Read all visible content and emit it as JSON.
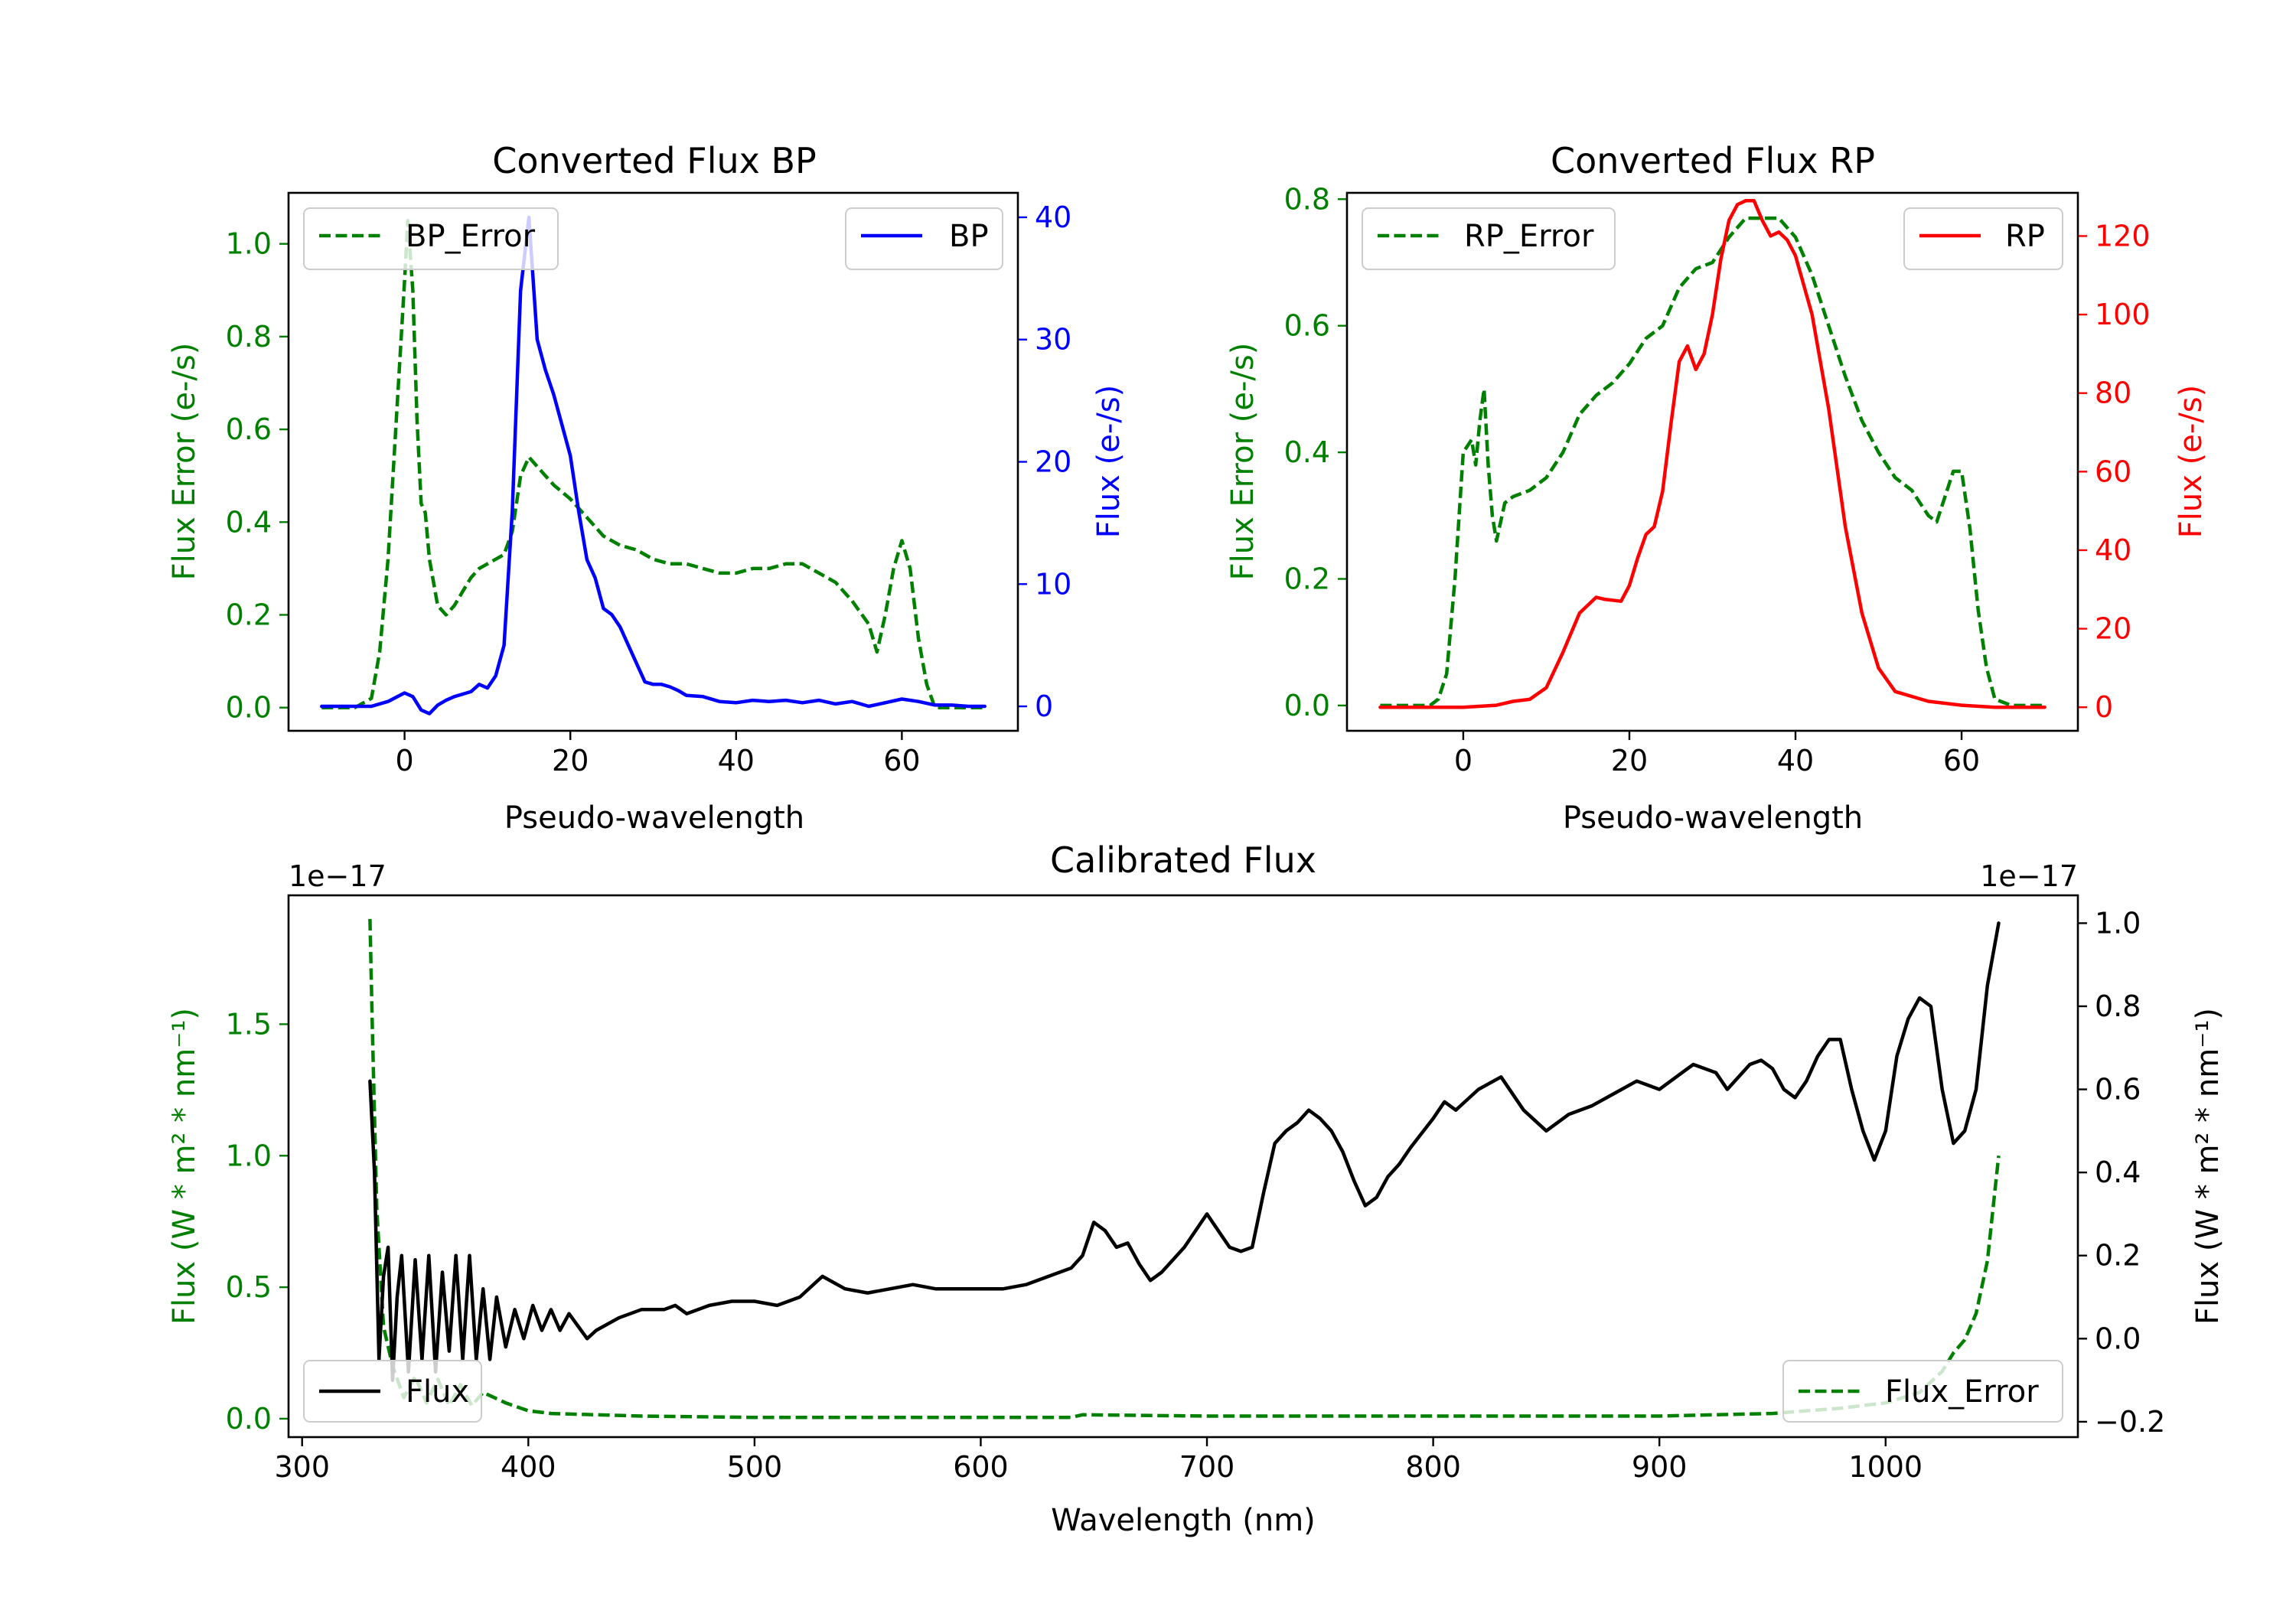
{
  "colors": {
    "green": "#008000",
    "blue": "#0000ff",
    "red": "#ff0000",
    "black": "#000000"
  },
  "chart_data": [
    {
      "id": "bp",
      "type": "line",
      "title": "Converted Flux BP",
      "xlabel": "Pseudo-wavelength",
      "ylabel_left": "Flux Error (e-/s)",
      "ylabel_right": "Flux (e-/s)",
      "xlim": [
        -14,
        74
      ],
      "ylim_left": [
        -0.05,
        1.11
      ],
      "ylim_right": [
        -2,
        42
      ],
      "xticks": [
        0,
        20,
        40,
        60
      ],
      "xtick_labels": [
        "0",
        "20",
        "40",
        "60"
      ],
      "yticks_left": [
        0.0,
        0.2,
        0.4,
        0.6,
        0.8,
        1.0
      ],
      "ytick_labels_left": [
        "0.0",
        "0.2",
        "0.4",
        "0.6",
        "0.8",
        "1.0"
      ],
      "yticks_right": [
        0,
        10,
        20,
        30,
        40
      ],
      "ytick_labels_right": [
        "0",
        "10",
        "20",
        "30",
        "40"
      ],
      "legend_left": {
        "label": "BP_Error",
        "placement": "top-left"
      },
      "legend_right": {
        "label": "BP",
        "placement": "top-right"
      },
      "series": [
        {
          "name": "BP_Error",
          "axis": "left",
          "color": "#008000",
          "style": "dashed",
          "x": [
            -10,
            -6,
            -4,
            -3,
            -2,
            -1,
            0,
            0.4,
            1,
            1.5,
            2,
            2.5,
            3,
            4,
            5,
            6,
            7,
            8,
            9,
            10,
            11,
            12,
            13,
            14,
            15,
            16,
            17,
            18,
            20,
            22,
            24,
            26,
            28,
            30,
            32,
            34,
            36,
            38,
            40,
            42,
            44,
            46,
            48,
            50,
            52,
            54,
            56,
            57,
            58,
            59,
            60,
            61,
            62,
            63,
            64,
            66,
            68,
            70
          ],
          "y": [
            0,
            0,
            0.02,
            0.12,
            0.32,
            0.62,
            0.92,
            1.05,
            0.9,
            0.62,
            0.44,
            0.42,
            0.32,
            0.22,
            0.2,
            0.22,
            0.25,
            0.28,
            0.3,
            0.31,
            0.32,
            0.33,
            0.38,
            0.5,
            0.54,
            0.52,
            0.5,
            0.48,
            0.45,
            0.41,
            0.37,
            0.35,
            0.34,
            0.32,
            0.31,
            0.31,
            0.3,
            0.29,
            0.29,
            0.3,
            0.3,
            0.31,
            0.31,
            0.29,
            0.27,
            0.23,
            0.18,
            0.12,
            0.2,
            0.3,
            0.36,
            0.3,
            0.15,
            0.05,
            0.0,
            0.0,
            0.0,
            0.0
          ]
        },
        {
          "name": "BP",
          "axis": "right",
          "color": "#0000ff",
          "style": "solid",
          "x": [
            -10,
            -4,
            -2,
            0,
            1,
            2,
            3,
            4,
            5,
            6,
            7,
            8,
            9,
            10,
            11,
            12,
            13,
            14,
            15,
            16,
            17,
            18,
            19,
            20,
            21,
            22,
            23,
            24,
            25,
            26,
            27,
            28,
            29,
            30,
            31,
            32,
            33,
            34,
            36,
            38,
            40,
            42,
            44,
            46,
            48,
            50,
            52,
            54,
            56,
            58,
            60,
            62,
            64,
            66,
            68,
            70
          ],
          "y": [
            0,
            0,
            0.4,
            1.1,
            0.8,
            -0.3,
            -0.6,
            0.1,
            0.5,
            0.8,
            1,
            1.2,
            1.8,
            1.5,
            2.5,
            5,
            16,
            34,
            40,
            30,
            27.5,
            25.5,
            23,
            20.5,
            16,
            12,
            10.5,
            8,
            7.5,
            6.5,
            5,
            3.5,
            2,
            1.8,
            1.8,
            1.6,
            1.3,
            0.9,
            0.8,
            0.4,
            0.3,
            0.5,
            0.4,
            0.5,
            0.3,
            0.5,
            0.2,
            0.4,
            0.0,
            0.3,
            0.6,
            0.4,
            0.1,
            0.1,
            0.0,
            0.0
          ]
        }
      ]
    },
    {
      "id": "rp",
      "type": "line",
      "title": "Converted Flux RP",
      "xlabel": "Pseudo-wavelength",
      "ylabel_left": "Flux Error (e-/s)",
      "ylabel_right": "Flux (e-/s)",
      "xlim": [
        -14,
        74
      ],
      "ylim_left": [
        -0.04,
        0.81
      ],
      "ylim_right": [
        -6,
        131
      ],
      "xticks": [
        0,
        20,
        40,
        60
      ],
      "xtick_labels": [
        "0",
        "20",
        "40",
        "60"
      ],
      "yticks_left": [
        0.0,
        0.2,
        0.4,
        0.6,
        0.8
      ],
      "ytick_labels_left": [
        "0.0",
        "0.2",
        "0.4",
        "0.6",
        "0.8"
      ],
      "yticks_right": [
        0,
        20,
        40,
        60,
        80,
        100,
        120
      ],
      "ytick_labels_right": [
        "0",
        "20",
        "40",
        "60",
        "80",
        "100",
        "120"
      ],
      "legend_left": {
        "label": "RP_Error",
        "placement": "top-left"
      },
      "legend_right": {
        "label": "RP",
        "placement": "top-right"
      },
      "series": [
        {
          "name": "RP_Error",
          "axis": "left",
          "color": "#008000",
          "style": "dashed",
          "x": [
            -10,
            -4,
            -3,
            -2,
            -1,
            0,
            1,
            1.5,
            2,
            2.5,
            3,
            3.5,
            4,
            5,
            6,
            8,
            10,
            12,
            14,
            16,
            18,
            20,
            22,
            24,
            26,
            28,
            30,
            32,
            34,
            36,
            38,
            40,
            42,
            44,
            46,
            48,
            50,
            52,
            54,
            55,
            56,
            57,
            58,
            59,
            60,
            61,
            62,
            63,
            64,
            66,
            70
          ],
          "y": [
            0,
            0,
            0.01,
            0.05,
            0.2,
            0.4,
            0.42,
            0.38,
            0.45,
            0.5,
            0.38,
            0.3,
            0.26,
            0.32,
            0.33,
            0.34,
            0.36,
            0.4,
            0.46,
            0.49,
            0.51,
            0.54,
            0.58,
            0.6,
            0.66,
            0.69,
            0.7,
            0.74,
            0.77,
            0.77,
            0.77,
            0.74,
            0.68,
            0.6,
            0.52,
            0.45,
            0.4,
            0.36,
            0.34,
            0.32,
            0.3,
            0.29,
            0.33,
            0.37,
            0.37,
            0.28,
            0.15,
            0.06,
            0.01,
            0.0,
            0.0
          ]
        },
        {
          "name": "RP",
          "axis": "right",
          "color": "#ff0000",
          "style": "solid",
          "x": [
            -10,
            0,
            4,
            6,
            8,
            10,
            12,
            14,
            16,
            17,
            19,
            20,
            21,
            22,
            23,
            24,
            25,
            26,
            27,
            28,
            29,
            30,
            31,
            32,
            33,
            34,
            35,
            36,
            37,
            38,
            39,
            40,
            42,
            44,
            46,
            48,
            50,
            52,
            56,
            60,
            64,
            70
          ],
          "y": [
            0,
            0,
            0.5,
            1.5,
            2,
            5,
            14,
            24,
            28,
            27.5,
            27,
            31,
            38,
            44,
            46,
            55,
            72,
            88,
            92,
            86,
            90,
            100,
            114,
            124,
            128,
            129,
            129,
            124,
            120,
            121,
            119,
            115,
            100,
            76,
            46,
            24,
            10,
            4,
            1.5,
            0.5,
            0,
            0
          ]
        }
      ]
    },
    {
      "id": "calibrated",
      "type": "line",
      "title": "Calibrated Flux",
      "xlabel": "Wavelength (nm)",
      "ylabel_left": "Flux (W * m² * nm⁻¹)",
      "ylabel_right": "Flux (W * m² * nm⁻¹)",
      "offset_left": "1e−17",
      "offset_right": "1e−17",
      "xlim": [
        294,
        1085
      ],
      "ylim_left": [
        -0.07,
        1.99
      ],
      "ylim_right": [
        -0.237,
        1.067
      ],
      "xticks": [
        300,
        400,
        500,
        600,
        700,
        800,
        900,
        1000
      ],
      "xtick_labels": [
        "300",
        "400",
        "500",
        "600",
        "700",
        "800",
        "900",
        "1000"
      ],
      "yticks_left": [
        0.0,
        0.5,
        1.0,
        1.5
      ],
      "ytick_labels_left": [
        "0.0",
        "0.5",
        "1.0",
        "1.5"
      ],
      "yticks_right": [
        -0.2,
        0.0,
        0.2,
        0.4,
        0.6,
        0.8,
        1.0
      ],
      "ytick_labels_right": [
        "−0.2",
        "0.0",
        "0.2",
        "0.4",
        "0.6",
        "0.8",
        "1.0"
      ],
      "legend_left": {
        "label": "Flux",
        "placement": "bottom-left"
      },
      "legend_right": {
        "label": "Flux_Error",
        "placement": "bottom-right"
      },
      "series": [
        {
          "name": "Flux_Error",
          "axis": "left",
          "color": "#008000",
          "style": "dashed",
          "x": [
            330,
            331,
            333,
            336,
            340,
            345,
            350,
            355,
            360,
            365,
            370,
            375,
            380,
            390,
            400,
            410,
            450,
            500,
            550,
            600,
            640,
            645,
            700,
            800,
            900,
            950,
            980,
            1000,
            1015,
            1025,
            1030,
            1035,
            1040,
            1045,
            1050
          ],
          "y": [
            1.9,
            1.5,
            0.8,
            0.35,
            0.2,
            0.08,
            0.16,
            0.06,
            0.15,
            0.05,
            0.13,
            0.05,
            0.1,
            0.06,
            0.03,
            0.02,
            0.01,
            0.005,
            0.005,
            0.005,
            0.005,
            0.015,
            0.01,
            0.01,
            0.01,
            0.02,
            0.04,
            0.06,
            0.1,
            0.18,
            0.25,
            0.3,
            0.4,
            0.6,
            1.0
          ]
        },
        {
          "name": "Flux",
          "axis": "right",
          "color": "#000000",
          "style": "solid",
          "x": [
            330,
            332,
            334,
            336,
            338,
            340,
            342,
            344,
            347,
            350,
            353,
            356,
            359,
            362,
            365,
            368,
            371,
            374,
            377,
            380,
            383,
            386,
            390,
            394,
            398,
            402,
            406,
            410,
            414,
            418,
            422,
            426,
            430,
            440,
            450,
            460,
            465,
            470,
            480,
            490,
            500,
            510,
            520,
            530,
            540,
            550,
            560,
            570,
            580,
            590,
            600,
            610,
            620,
            630,
            640,
            645,
            650,
            655,
            660,
            665,
            670,
            675,
            680,
            690,
            700,
            705,
            710,
            715,
            720,
            725,
            730,
            735,
            740,
            745,
            750,
            755,
            760,
            765,
            770,
            775,
            780,
            785,
            790,
            800,
            805,
            810,
            820,
            830,
            840,
            850,
            860,
            870,
            880,
            890,
            900,
            910,
            915,
            920,
            925,
            930,
            940,
            945,
            950,
            955,
            960,
            965,
            970,
            975,
            980,
            985,
            990,
            995,
            1000,
            1005,
            1010,
            1015,
            1020,
            1025,
            1030,
            1035,
            1040,
            1045,
            1050
          ],
          "y": [
            0.62,
            0.4,
            -0.05,
            0.15,
            0.22,
            -0.1,
            0.1,
            0.2,
            -0.08,
            0.19,
            -0.05,
            0.2,
            -0.08,
            0.16,
            -0.03,
            0.2,
            -0.05,
            0.2,
            -0.05,
            0.12,
            -0.05,
            0.1,
            -0.02,
            0.07,
            0.0,
            0.08,
            0.02,
            0.07,
            0.02,
            0.06,
            0.03,
            0.0,
            0.02,
            0.05,
            0.07,
            0.07,
            0.08,
            0.06,
            0.08,
            0.09,
            0.09,
            0.08,
            0.1,
            0.15,
            0.12,
            0.11,
            0.12,
            0.13,
            0.12,
            0.12,
            0.12,
            0.12,
            0.13,
            0.15,
            0.17,
            0.2,
            0.28,
            0.26,
            0.22,
            0.23,
            0.18,
            0.14,
            0.16,
            0.22,
            0.3,
            0.26,
            0.22,
            0.21,
            0.22,
            0.35,
            0.47,
            0.5,
            0.52,
            0.55,
            0.53,
            0.5,
            0.45,
            0.38,
            0.32,
            0.34,
            0.39,
            0.42,
            0.46,
            0.53,
            0.57,
            0.55,
            0.6,
            0.63,
            0.55,
            0.5,
            0.54,
            0.56,
            0.59,
            0.62,
            0.6,
            0.64,
            0.66,
            0.65,
            0.64,
            0.6,
            0.66,
            0.67,
            0.65,
            0.6,
            0.58,
            0.62,
            0.68,
            0.72,
            0.72,
            0.6,
            0.5,
            0.43,
            0.5,
            0.68,
            0.77,
            0.82,
            0.8,
            0.6,
            0.47,
            0.5,
            0.6,
            0.85,
            1.0
          ]
        }
      ]
    }
  ]
}
